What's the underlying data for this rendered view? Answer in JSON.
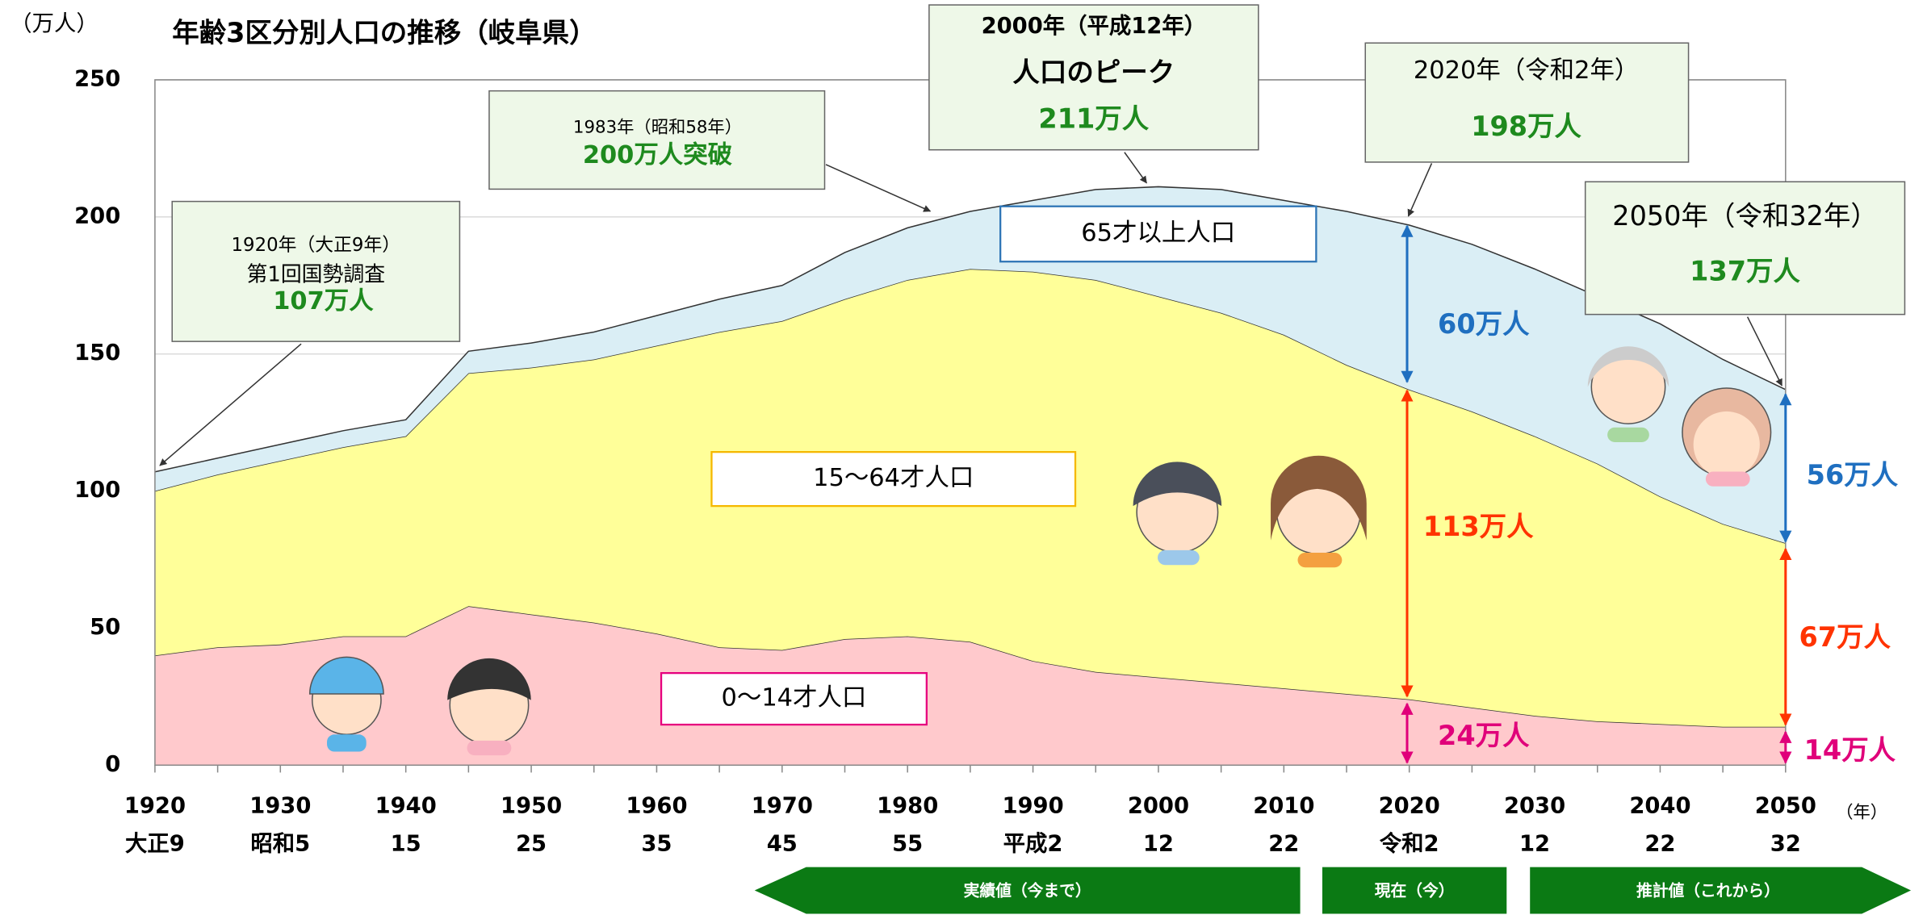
{
  "chart_data": {
    "type": "area",
    "title": "年齢3区分別人口の推移（岐阜県）",
    "y_unit": "（万人）",
    "x_unit": "（年）",
    "x": [
      1920,
      1925,
      1930,
      1935,
      1940,
      1945,
      1950,
      1955,
      1960,
      1965,
      1970,
      1975,
      1980,
      1985,
      1990,
      1995,
      2000,
      2005,
      2010,
      2015,
      2020,
      2025,
      2030,
      2035,
      2040,
      2045,
      2050
    ],
    "series": [
      {
        "name": "0〜14才人口",
        "color": "#ffc9cc",
        "border": "#e6007e",
        "values": [
          40,
          43,
          44,
          47,
          47,
          58,
          55,
          52,
          48,
          43,
          42,
          46,
          47,
          45,
          38,
          34,
          32,
          30,
          28,
          26,
          24,
          21,
          18,
          16,
          15,
          14,
          14
        ]
      },
      {
        "name": "15〜64才人口",
        "color": "#ffff99",
        "border": "#f5b800",
        "values": [
          60,
          63,
          67,
          69,
          73,
          85,
          90,
          96,
          105,
          115,
          120,
          124,
          130,
          136,
          142,
          143,
          139,
          135,
          129,
          120,
          113,
          108,
          102,
          94,
          83,
          74,
          67
        ]
      },
      {
        "name": "65才以上人口",
        "color": "#daeef5",
        "border": "#2e75b6",
        "values": [
          7,
          6,
          6,
          6,
          6,
          8,
          9,
          10,
          11,
          12,
          13,
          17,
          19,
          21,
          26,
          33,
          40,
          45,
          49,
          56,
          60,
          61,
          61,
          61,
          63,
          60,
          56
        ]
      }
    ],
    "xlim": [
      1920,
      2050
    ],
    "ylim": [
      0,
      250
    ],
    "yticks": [
      0,
      50,
      100,
      150,
      200,
      250
    ],
    "xticks": [
      1920,
      1930,
      1940,
      1950,
      1960,
      1970,
      1980,
      1990,
      2000,
      2010,
      2020,
      2030,
      2040,
      2050
    ],
    "era_labels": [
      "大正9",
      "昭和5",
      "15",
      "25",
      "35",
      "45",
      "55",
      "平成2",
      "12",
      "22",
      "令和2",
      "12",
      "22",
      "32"
    ],
    "grid": true,
    "callouts": [
      {
        "lines": [
          "1920年（大正9年）",
          "第1回国勢調査",
          "107万人"
        ]
      },
      {
        "lines": [
          "1983年（昭和58年）",
          "200万人突破"
        ]
      },
      {
        "lines": [
          "2000年（平成12年）",
          "人口のピーク",
          "211万人"
        ]
      },
      {
        "lines": [
          "2020年（令和2年）",
          "198万人"
        ]
      },
      {
        "lines": [
          "2050年（令和32年）",
          "137万人"
        ]
      }
    ],
    "segment_labels": [
      "60万人",
      "113万人",
      "24万人",
      "56万人",
      "67万人",
      "14万人"
    ],
    "timeline": [
      "実績値（今まで）",
      "現在（今）",
      "推計値（これから）"
    ]
  }
}
